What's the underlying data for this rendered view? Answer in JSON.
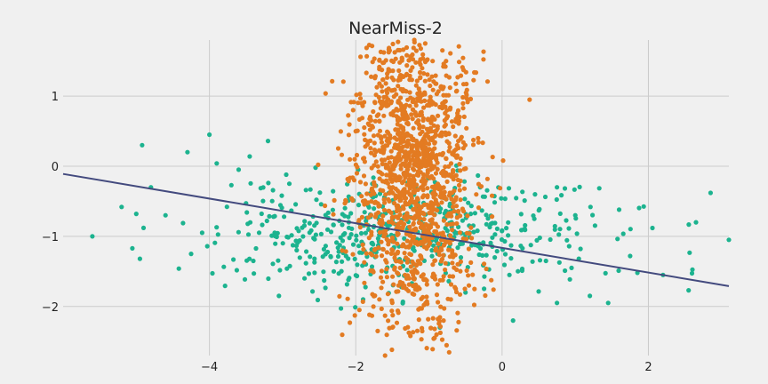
{
  "chart_data": {
    "type": "scatter",
    "title": "NearMiss-2",
    "xlabel": "",
    "ylabel": "",
    "xlim": [
      -6.0,
      3.1
    ],
    "ylim": [
      -2.7,
      1.8
    ],
    "grid": true,
    "x_ticks": [
      -4,
      -2,
      0,
      2
    ],
    "x_tick_labels": [
      "−4",
      "−2",
      "0",
      "2"
    ],
    "y_ticks": [
      -2,
      -1,
      0,
      1
    ],
    "y_tick_labels": [
      "−2",
      "−1",
      "0",
      "1"
    ],
    "colors": {
      "background": "#f0f0f0",
      "grid": "#cbcbcb",
      "class_majority": "#1cb38f",
      "class_minority": "#e37b22",
      "decision_line": "#434a7e"
    },
    "decision_line": {
      "x": [
        -6.0,
        3.1
      ],
      "y": [
        -0.11,
        -1.71
      ]
    },
    "series": [
      {
        "color": "#1cb38f",
        "points": [
          [
            -5.6,
            -1.0
          ],
          [
            -5.2,
            -0.58
          ],
          [
            -5.0,
            -0.68
          ],
          [
            -4.95,
            -1.32
          ],
          [
            -4.92,
            0.3
          ],
          [
            -4.9,
            -0.88
          ],
          [
            -4.8,
            -0.3
          ],
          [
            -4.6,
            -0.7
          ],
          [
            -4.3,
            0.2
          ],
          [
            -4.25,
            -1.25
          ],
          [
            -4.1,
            -0.95
          ],
          [
            -4.0,
            0.45
          ],
          [
            -3.9,
            0.04
          ],
          [
            -3.7,
            -0.27
          ],
          [
            -3.6,
            -0.05
          ],
          [
            -3.45,
            0.14
          ],
          [
            -3.4,
            -1.35
          ],
          [
            -3.2,
            0.36
          ],
          [
            -3.05,
            -1.85
          ],
          [
            -2.95,
            -0.12
          ],
          [
            -2.7,
            -1.6
          ],
          [
            -2.55,
            -0.02
          ],
          [
            -2.3,
            -1.5
          ],
          [
            -2.1,
            -1.62
          ],
          [
            -1.9,
            -1.9
          ],
          [
            -0.85,
            -2.3
          ],
          [
            -0.5,
            -1.8
          ],
          [
            0.15,
            -2.2
          ],
          [
            0.45,
            -0.4
          ],
          [
            0.75,
            -0.3
          ],
          [
            0.75,
            -1.95
          ],
          [
            1.2,
            -1.85
          ],
          [
            1.45,
            -1.95
          ],
          [
            1.6,
            -0.62
          ],
          [
            1.75,
            -1.28
          ],
          [
            1.85,
            -1.52
          ],
          [
            2.2,
            -1.55
          ],
          [
            2.55,
            -1.77
          ],
          [
            2.65,
            -0.8
          ],
          [
            2.85,
            -0.38
          ],
          [
            3.1,
            -1.05
          ],
          [
            1.0,
            -0.7
          ],
          [
            0.95,
            -1.45
          ],
          [
            0.6,
            -1.35
          ],
          [
            0.3,
            -0.9
          ],
          [
            0.1,
            -1.55
          ],
          [
            -0.3,
            -0.3
          ],
          [
            -0.1,
            -1.3
          ]
        ],
        "cloud": {
          "cx": -1.3,
          "cy": -0.95,
          "sx": 1.25,
          "sy": 0.38,
          "n": 520,
          "seed": 7
        }
      },
      {
        "color": "#e37b22",
        "points": [
          [
            -1.95,
            -2.05
          ],
          [
            -1.7,
            -2.35
          ],
          [
            -1.5,
            -2.3
          ],
          [
            -1.6,
            -2.7
          ],
          [
            -0.8,
            -2.2
          ],
          [
            -0.7,
            -1.9
          ],
          [
            -1.2,
            -1.6
          ],
          [
            -1.05,
            1.75
          ],
          [
            -1.2,
            1.8
          ],
          [
            -0.95,
            1.5
          ]
        ],
        "cloud": {
          "cx": -1.2,
          "cy": 0.0,
          "sx": 0.42,
          "sy": 1.15,
          "n": 1500,
          "seed": 13
        }
      }
    ]
  }
}
